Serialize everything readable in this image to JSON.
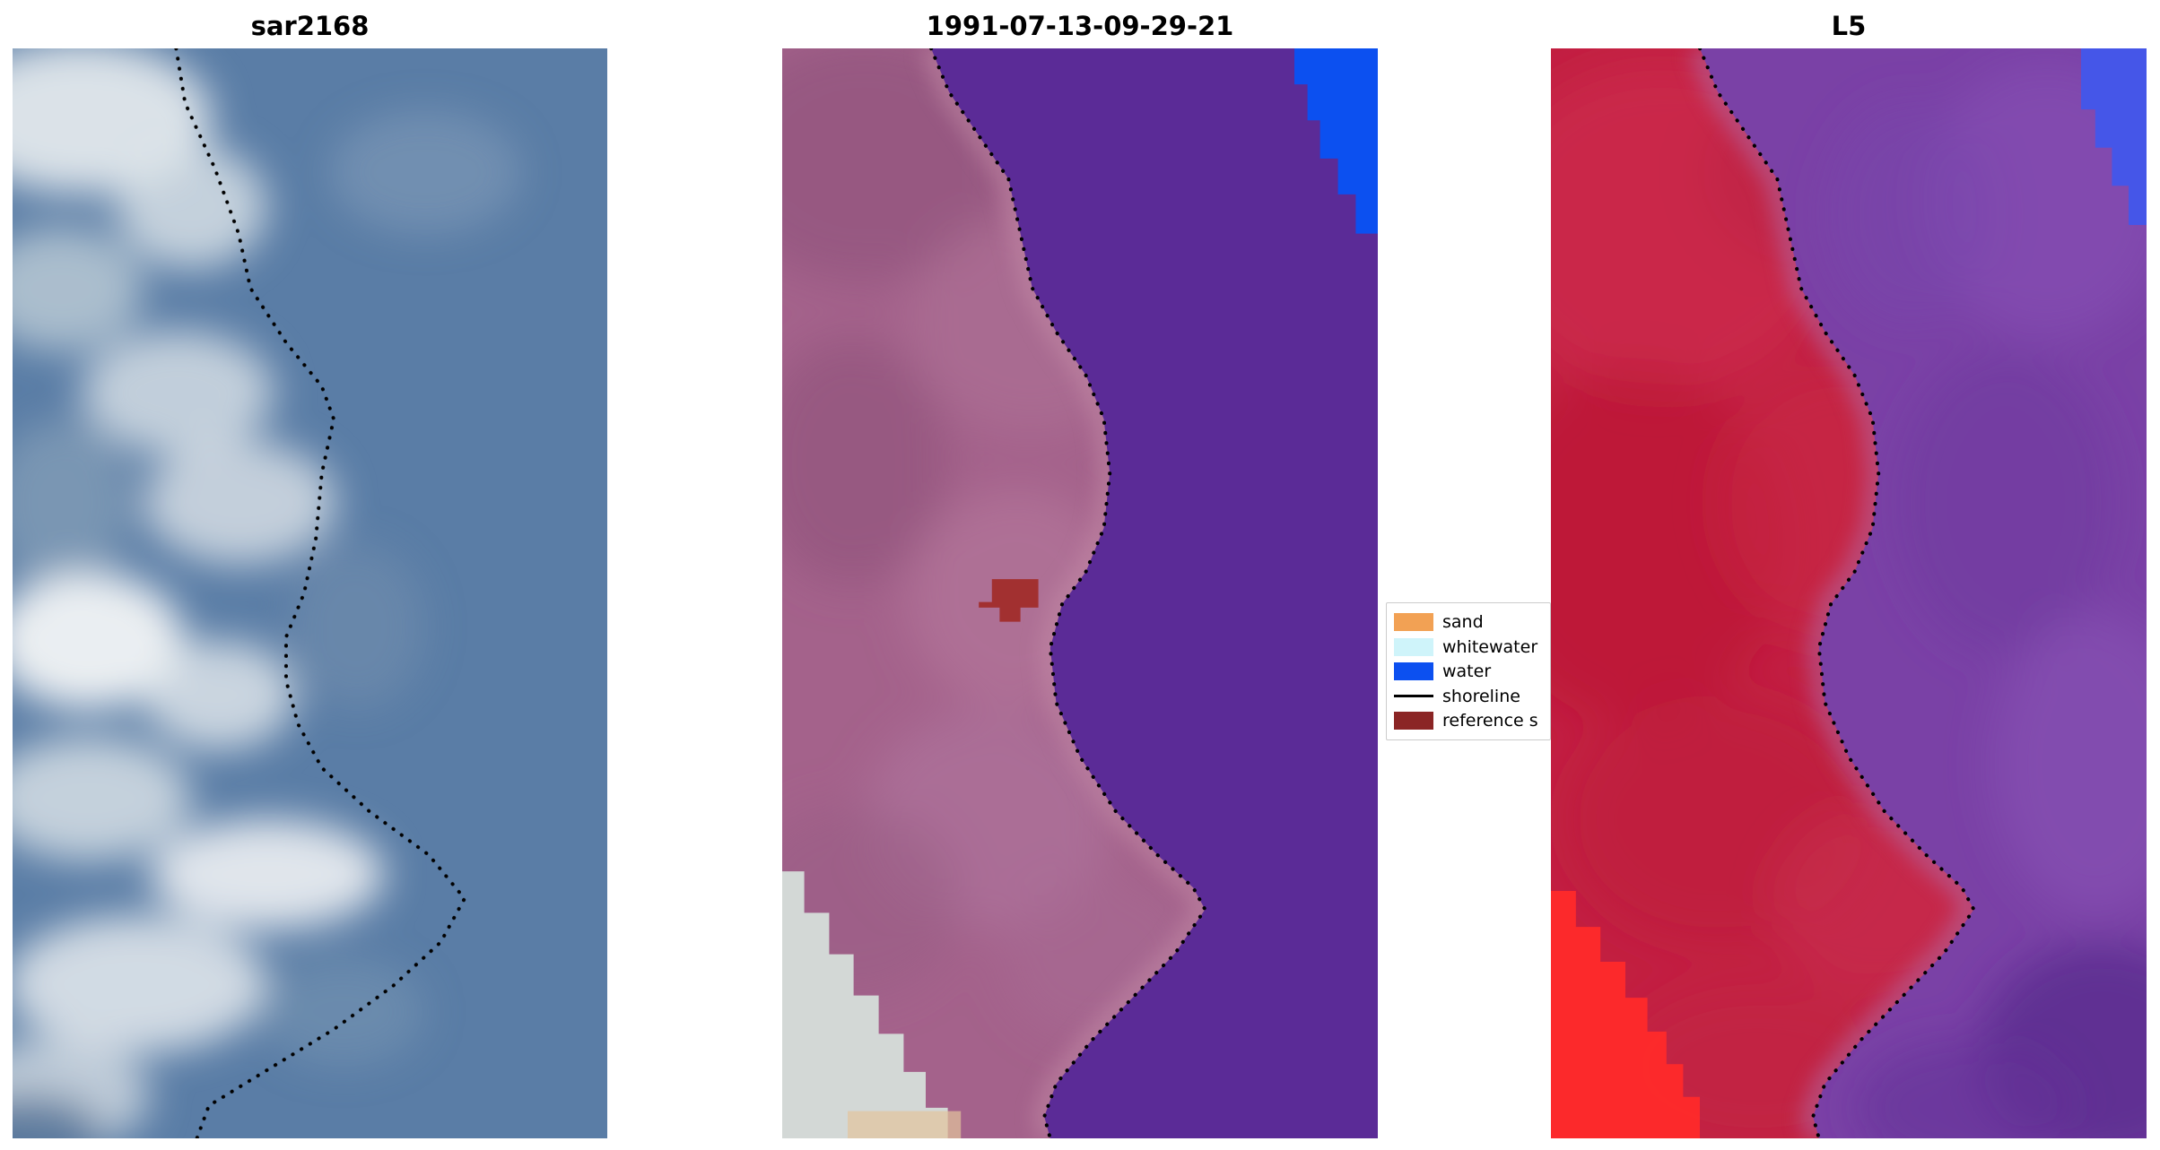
{
  "figure": {
    "background": "#ffffff",
    "panels": [
      {
        "title": "sar2168",
        "base_color": "#5A7DA6"
      },
      {
        "title": "1991-07-13-09-29-21",
        "base_color": "#A4628B",
        "water_color": "#5B2B97",
        "blue_patch_color": "#0C50F0",
        "cloud_color": "#D3D8D6",
        "reference_color": "#A23030",
        "sand_color": "#E2C49C"
      },
      {
        "title": "L5",
        "base_color": "#C21F41",
        "water_color": "#7A41A6",
        "blue_patch_color": "#4556E8",
        "hot_red_color": "#FF2A2A"
      }
    ],
    "legend": {
      "items": [
        {
          "label": "sand",
          "type": "patch",
          "color": "#F2A154"
        },
        {
          "label": "whitewater",
          "type": "patch",
          "color": "#CFF4FA"
        },
        {
          "label": "water",
          "type": "patch",
          "color": "#0C50F0"
        },
        {
          "label": "shoreline",
          "type": "line",
          "color": "#000000"
        },
        {
          "label": "reference s",
          "type": "patch",
          "color": "#8B2525"
        }
      ]
    }
  },
  "chart_data": [
    {
      "type": "heatmap",
      "subtype": "satellite-image",
      "title": "sar2168",
      "description": "SAR backscatter image: slate-blue water on the right, bright white/grey coastal returns on the left, dotted black detected shoreline",
      "shoreline_points_pct": [
        [
          27.5,
          0
        ],
        [
          29,
          5
        ],
        [
          34,
          11
        ],
        [
          38,
          17
        ],
        [
          40,
          22
        ],
        [
          46,
          27
        ],
        [
          52,
          31
        ],
        [
          54,
          34
        ],
        [
          52,
          39
        ],
        [
          51,
          45
        ],
        [
          49,
          50
        ],
        [
          46,
          54
        ],
        [
          46,
          58
        ],
        [
          48,
          62
        ],
        [
          52,
          66
        ],
        [
          60,
          70
        ],
        [
          70,
          74
        ],
        [
          76,
          78
        ],
        [
          72,
          82
        ],
        [
          64,
          86
        ],
        [
          54,
          90
        ],
        [
          42,
          94
        ],
        [
          33,
          97
        ],
        [
          31,
          100
        ]
      ]
    },
    {
      "type": "heatmap",
      "subtype": "classified-satellite-image",
      "title": "1991-07-13-09-29-21",
      "description": "Classified optical scene: mauve land left, purple classified water right, blue water patch top-right corner, white cloud patch bottom-left, dark-red reference sand patch mid-image, dotted shoreline",
      "shoreline_points_pct": [
        [
          25,
          0
        ],
        [
          28,
          4
        ],
        [
          33,
          8
        ],
        [
          38,
          12
        ],
        [
          40,
          17
        ],
        [
          42,
          22
        ],
        [
          46,
          26
        ],
        [
          51,
          30
        ],
        [
          54,
          34
        ],
        [
          55,
          39
        ],
        [
          54,
          44
        ],
        [
          51,
          48
        ],
        [
          47,
          51
        ],
        [
          45,
          55
        ],
        [
          46,
          60
        ],
        [
          50,
          65
        ],
        [
          56,
          70
        ],
        [
          63,
          74
        ],
        [
          69,
          77
        ],
        [
          71,
          79
        ],
        [
          66,
          83
        ],
        [
          59,
          87
        ],
        [
          52,
          91
        ],
        [
          46,
          95
        ],
        [
          44,
          98
        ],
        [
          45,
          100
        ]
      ],
      "regions": {
        "blue_corner": [
          [
            86,
            0
          ],
          [
            100,
            0
          ],
          [
            100,
            17
          ],
          [
            96.3,
            17
          ],
          [
            96.3,
            13.4
          ],
          [
            93.3,
            13.4
          ],
          [
            93.3,
            10.1
          ],
          [
            90.3,
            10.1
          ],
          [
            90.3,
            6.6
          ],
          [
            88.2,
            6.6
          ],
          [
            88.2,
            3.3
          ],
          [
            86,
            3.3
          ]
        ],
        "cloud_patch": [
          [
            0,
            75.5
          ],
          [
            3.7,
            75.5
          ],
          [
            3.7,
            79.3
          ],
          [
            7.9,
            79.3
          ],
          [
            7.9,
            83.1
          ],
          [
            12,
            83.1
          ],
          [
            12,
            86.9
          ],
          [
            16.2,
            86.9
          ],
          [
            16.2,
            90.4
          ],
          [
            20.4,
            90.4
          ],
          [
            20.4,
            93.9
          ],
          [
            24.1,
            93.9
          ],
          [
            24.1,
            97.2
          ],
          [
            27.8,
            97.2
          ],
          [
            27.8,
            100
          ],
          [
            0,
            100
          ]
        ],
        "sand_strip": [
          [
            11,
            97.5
          ],
          [
            30,
            97.5
          ],
          [
            30,
            100
          ],
          [
            11,
            100
          ]
        ],
        "reference_patch": [
          [
            35.2,
            48.7
          ],
          [
            43,
            48.7
          ],
          [
            43,
            51.3
          ],
          [
            40,
            51.3
          ],
          [
            40,
            52.6
          ],
          [
            36.5,
            52.6
          ],
          [
            36.5,
            51.3
          ],
          [
            33,
            51.3
          ],
          [
            33,
            50.8
          ],
          [
            35.2,
            50.8
          ]
        ]
      }
    },
    {
      "type": "heatmap",
      "subtype": "satellite-image",
      "title": "L5",
      "description": "Landsat 5 false-colour image: red land left, violet water right, bright blue patch top-right corner, vivid red patch bottom-left, dotted shoreline",
      "shoreline_points_pct": [
        [
          25,
          0
        ],
        [
          28,
          4
        ],
        [
          33,
          8
        ],
        [
          38,
          12
        ],
        [
          40,
          17
        ],
        [
          42,
          22
        ],
        [
          46,
          26
        ],
        [
          51,
          30
        ],
        [
          54,
          34
        ],
        [
          55,
          39
        ],
        [
          54,
          44
        ],
        [
          51,
          48
        ],
        [
          47,
          51
        ],
        [
          45,
          55
        ],
        [
          46,
          60
        ],
        [
          50,
          65
        ],
        [
          56,
          70
        ],
        [
          63,
          74
        ],
        [
          69,
          77
        ],
        [
          71,
          79
        ],
        [
          66,
          83
        ],
        [
          59,
          87
        ],
        [
          52,
          91
        ],
        [
          46,
          95
        ],
        [
          44,
          98
        ],
        [
          45,
          100
        ]
      ],
      "regions": {
        "blue_corner": [
          [
            89,
            0
          ],
          [
            100,
            0
          ],
          [
            100,
            16.2
          ],
          [
            97,
            16.2
          ],
          [
            97,
            12.6
          ],
          [
            94.2,
            12.6
          ],
          [
            94.2,
            9.1
          ],
          [
            91.4,
            9.1
          ],
          [
            91.4,
            5.6
          ],
          [
            89,
            5.6
          ]
        ],
        "hot_red_patch": [
          [
            0,
            77.3
          ],
          [
            4.2,
            77.3
          ],
          [
            4.2,
            80.6
          ],
          [
            8.3,
            80.6
          ],
          [
            8.3,
            83.8
          ],
          [
            12.5,
            83.8
          ],
          [
            12.5,
            87.1
          ],
          [
            16.2,
            87.1
          ],
          [
            16.2,
            90.2
          ],
          [
            19.4,
            90.2
          ],
          [
            19.4,
            93.2
          ],
          [
            22.2,
            93.2
          ],
          [
            22.2,
            96.2
          ],
          [
            25,
            96.2
          ],
          [
            25,
            100
          ],
          [
            0,
            100
          ]
        ]
      }
    }
  ]
}
